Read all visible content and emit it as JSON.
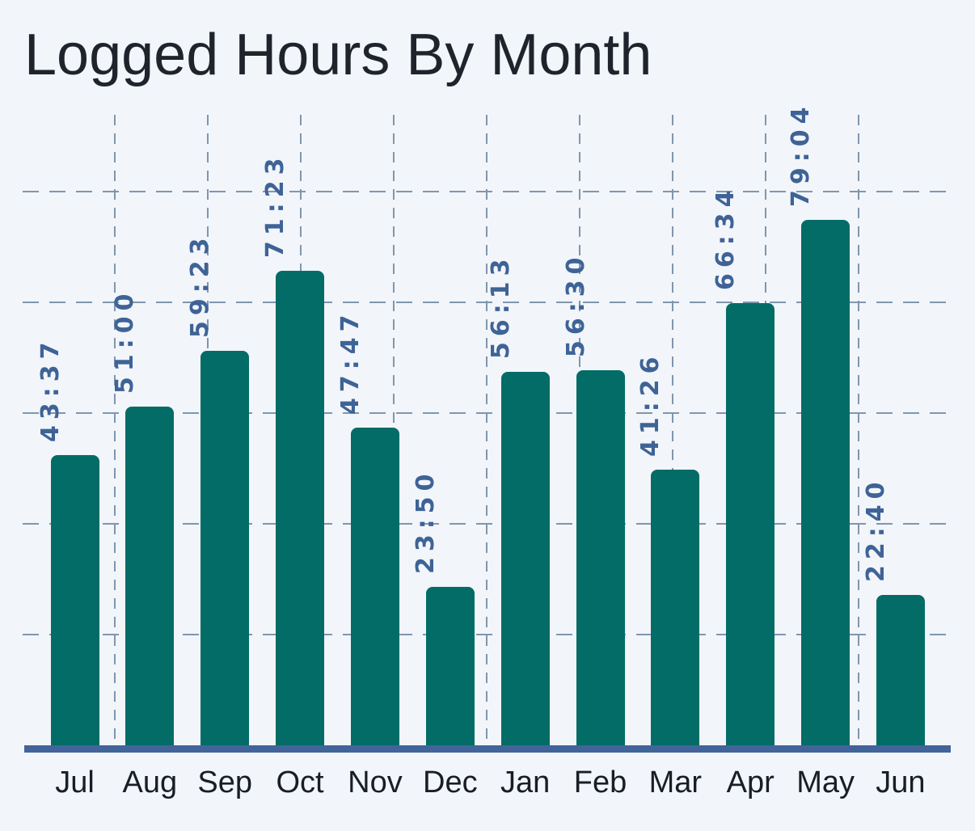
{
  "title": "Logged Hours By Month",
  "chart_data": {
    "type": "bar",
    "title": "Logged Hours By Month",
    "xlabel": "",
    "ylabel": "",
    "categories": [
      "Jul",
      "Aug",
      "Sep",
      "Oct",
      "Nov",
      "Dec",
      "Jan",
      "Feb",
      "Mar",
      "Apr",
      "May",
      "Jun"
    ],
    "values": [
      "43:37",
      "51:00",
      "59:23",
      "71:23",
      "47:47",
      "23:50",
      "56:13",
      "56:30",
      "41:26",
      "66:34",
      "79:04",
      "22:40"
    ],
    "values_minutes": [
      2617,
      3060,
      3563,
      4283,
      2867,
      1430,
      3373,
      3390,
      2486,
      3994,
      4744,
      1360
    ],
    "value_format": "hh:mm",
    "ylim_minutes": [
      0,
      5693
    ],
    "legend": "none",
    "grid": {
      "style": "dashed",
      "horizontal_interval_minutes": 1000,
      "horizontal_line_count": 5,
      "vertical_line_count": 9
    },
    "bar_value_labels_rotated_90": true
  },
  "colors": {
    "background": "#F2F5FA",
    "bar": "#036C67",
    "value_label": "#3E6396",
    "axis_line": "#41659A",
    "gridline": "#8096AD",
    "title_text": "#1F242C",
    "month_text": "#191E26"
  }
}
